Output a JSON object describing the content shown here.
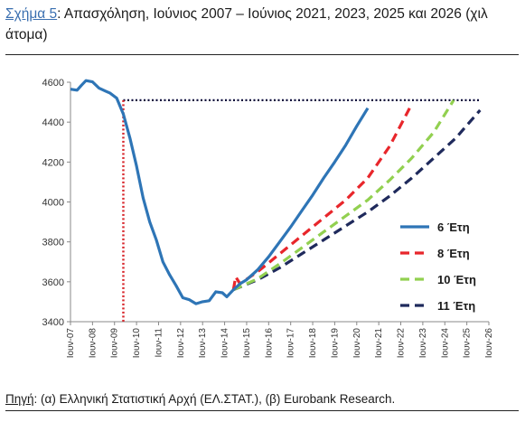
{
  "header": {
    "label": "Σχήμα 5",
    "text": ": Απασχόληση, Ιούνιος 2007 – Ιούνιος 2021, 2023, 2025 και 2026 (χιλ άτομα)"
  },
  "footer": {
    "label": "Πηγή",
    "text": ": (α) Ελληνική Στατιστική Αρχή (ΕΛ.ΣΤΑΤ.), (β) Eurobank Research."
  },
  "chart_data": {
    "type": "line",
    "title": "Σχήμα 5: Απασχόληση, Ιούνιος 2007 – Ιούνιος 2021, 2023, 2025 και 2026 (χιλ άτομα)",
    "ylim": [
      3400,
      4600
    ],
    "yticks": [
      3400,
      3600,
      3800,
      4000,
      4200,
      4400,
      4600
    ],
    "xlim": [
      2007.5,
      2026.5
    ],
    "xtick_labels": [
      "Ιουν-07",
      "Ιουν-08",
      "Ιουν-09",
      "Ιουν-10",
      "Ιουν-11",
      "Ιουν-12",
      "Ιουν-13",
      "Ιουν-14",
      "Ιουν-15",
      "Ιουν-16",
      "Ιουν-17",
      "Ιουν-18",
      "Ιουν-19",
      "Ιουν-20",
      "Ιουν-21",
      "Ιουν-22",
      "Ιουν-23",
      "Ιουν-24",
      "Ιουν-25",
      "Ιουν-26"
    ],
    "grid": false,
    "legend_position": "right",
    "colors": {
      "main": "#2e75b6",
      "s8": "#e8262b",
      "s10": "#92d050",
      "s11": "#1f2a5c",
      "ref": "#0b0b3b",
      "vline": "#d8262b"
    },
    "reference_line": {
      "y": 4510
    },
    "peak_marker": {
      "x": 2009.9
    },
    "series": [
      {
        "name": "6 Έτη",
        "style": "solid",
        "x": [
          2007.5,
          2007.8,
          2008.0,
          2008.2,
          2008.5,
          2008.8,
          2009.1,
          2009.3,
          2009.6,
          2009.9,
          2010.2,
          2010.5,
          2010.8,
          2011.1,
          2011.4,
          2011.7,
          2012.0,
          2012.3,
          2012.6,
          2012.9,
          2013.2,
          2013.5,
          2013.8,
          2014.1,
          2014.4,
          2014.6,
          2014.9,
          2015.2,
          2015.5,
          2015.8,
          2016.0,
          2016.5,
          2017.0,
          2017.5,
          2018.0,
          2018.5,
          2019.0,
          2019.5,
          2020.0,
          2020.5,
          2021.0
        ],
        "y": [
          4565,
          4560,
          4585,
          4608,
          4602,
          4570,
          4555,
          4545,
          4520,
          4440,
          4320,
          4180,
          4020,
          3900,
          3810,
          3700,
          3635,
          3580,
          3520,
          3510,
          3490,
          3500,
          3505,
          3550,
          3545,
          3525,
          3560,
          3590,
          3610,
          3640,
          3660,
          3725,
          3800,
          3875,
          3955,
          4035,
          4120,
          4200,
          4285,
          4380,
          4470
        ]
      },
      {
        "name": "8 Έτη",
        "style": "dash",
        "x": [
          2014.9,
          2015.0,
          2015.2,
          2016.0,
          2017.0,
          2018.0,
          2019.0,
          2020.0,
          2021.0,
          2022.0,
          2022.9
        ],
        "y": [
          3560,
          3625,
          3590,
          3650,
          3740,
          3830,
          3920,
          4010,
          4120,
          4280,
          4470
        ]
      },
      {
        "name": "10 Έτη",
        "style": "dash",
        "x": [
          2014.9,
          2016.0,
          2017.0,
          2018.0,
          2019.0,
          2020.0,
          2021.0,
          2022.0,
          2023.0,
          2024.0,
          2024.9
        ],
        "y": [
          3560,
          3615,
          3690,
          3770,
          3850,
          3930,
          4010,
          4110,
          4220,
          4350,
          4510
        ]
      },
      {
        "name": "11 Έτη",
        "style": "dash",
        "x": [
          2014.9,
          2016.0,
          2017.0,
          2018.0,
          2019.0,
          2020.0,
          2021.0,
          2022.0,
          2023.0,
          2024.0,
          2025.0,
          2026.1
        ],
        "y": [
          3560,
          3610,
          3670,
          3740,
          3810,
          3880,
          3950,
          4030,
          4120,
          4220,
          4320,
          4460
        ]
      }
    ]
  }
}
